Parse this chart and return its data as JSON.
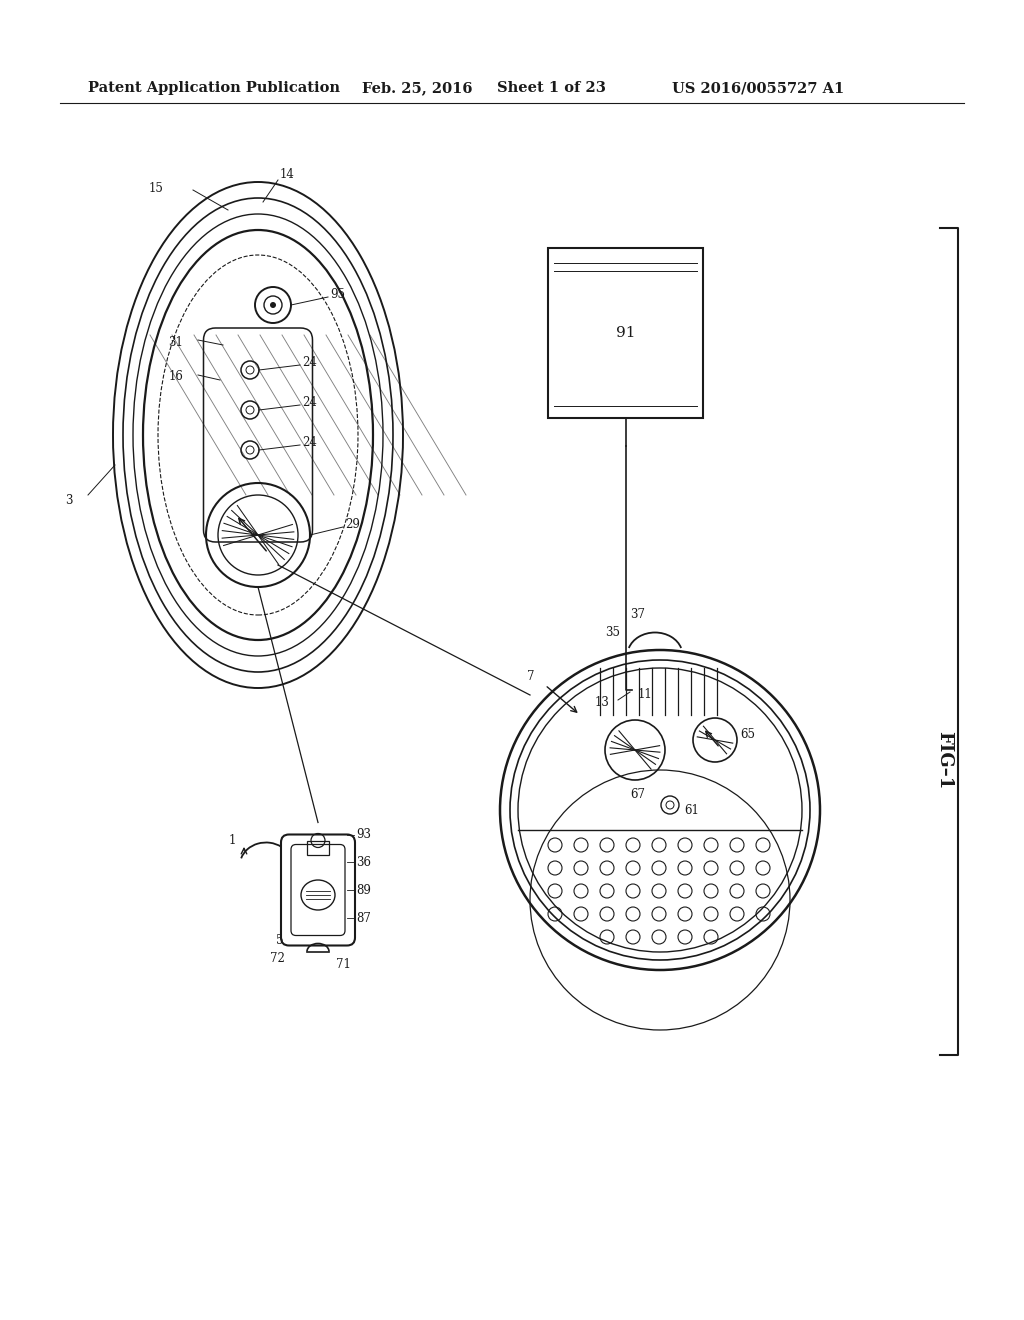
{
  "background_color": "#ffffff",
  "header_text": "Patent Application Publication",
  "header_date": "Feb. 25, 2016",
  "header_sheet": "Sheet 1 of 23",
  "header_patent": "US 2016/0055727 A1",
  "fig_label": "FIG–1",
  "line_color": "#1a1a1a",
  "text_color": "#1a1a1a",
  "font_size_header": 10.5,
  "font_size_ref": 8.5,
  "font_size_fig": 13
}
